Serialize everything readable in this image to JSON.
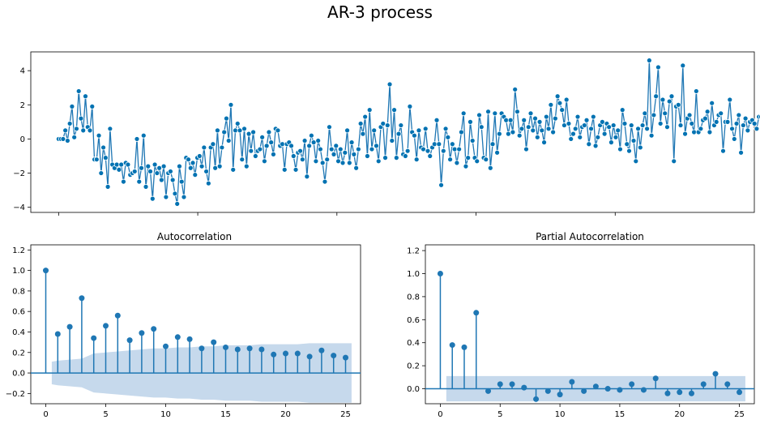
{
  "figure": {
    "title": "AR-3 process"
  },
  "colors": {
    "series": "#1f77b4",
    "marker": "#0072b2",
    "confidence": "#c6d9ec"
  },
  "chart_data": [
    {
      "type": "line",
      "title": "",
      "xlabel": "",
      "ylabel": "",
      "xlim": [
        -1,
        25
      ],
      "ylim": [
        -4.3,
        5.1
      ],
      "yticks": [
        -4,
        -2,
        0,
        2,
        4
      ],
      "xticks_shown": false,
      "x_start": 0,
      "x_step": 0.0804,
      "marker": "o",
      "y": [
        0.0,
        0.0,
        0.0,
        0.5,
        -0.1,
        0.9,
        1.9,
        0.1,
        0.6,
        2.8,
        1.2,
        0.5,
        2.5,
        0.7,
        0.5,
        1.9,
        -1.2,
        -1.2,
        0.2,
        -2.0,
        -0.5,
        -1.1,
        -2.8,
        0.6,
        -1.5,
        -1.7,
        -1.5,
        -1.8,
        -1.5,
        -2.5,
        -1.4,
        -1.5,
        -2.1,
        -2.0,
        -1.9,
        0.0,
        -2.5,
        -1.7,
        0.2,
        -2.8,
        -1.6,
        -1.9,
        -3.5,
        -1.5,
        -2.0,
        -1.7,
        -2.4,
        -1.6,
        -3.4,
        -2.0,
        -1.9,
        -2.4,
        -3.2,
        -3.8,
        -1.6,
        -2.5,
        -3.4,
        -1.1,
        -1.2,
        -1.7,
        -1.4,
        -2.1,
        -1.1,
        -1.0,
        -1.6,
        -0.5,
        -1.9,
        -2.6,
        -0.5,
        -0.3,
        -1.7,
        0.5,
        -1.6,
        -0.5,
        0.4,
        1.2,
        -0.1,
        2.0,
        -1.8,
        0.5,
        0.9,
        0.5,
        -1.2,
        0.6,
        -1.6,
        0.3,
        -0.7,
        0.4,
        -1.0,
        -0.7,
        -0.6,
        0.1,
        -1.3,
        -0.4,
        0.4,
        -0.2,
        -0.9,
        0.6,
        0.5,
        -0.4,
        -0.3,
        -1.8,
        -0.3,
        -0.2,
        -0.4,
        -1.0,
        -1.8,
        -0.8,
        -0.7,
        -1.2,
        -0.1,
        -2.2,
        -0.4,
        0.2,
        -0.2,
        -1.3,
        -0.1,
        -0.6,
        -1.4,
        -2.5,
        -1.2,
        0.7,
        -0.6,
        -0.9,
        -0.4,
        -1.3,
        -0.6,
        -1.4,
        -0.8,
        0.5,
        -1.4,
        -0.2,
        -0.9,
        -1.7,
        -0.6,
        0.9,
        0.3,
        1.3,
        -1.0,
        1.7,
        -0.6,
        0.5,
        -0.4,
        -1.3,
        0.7,
        0.9,
        -1.1,
        0.8,
        3.2,
        -0.1,
        1.7,
        -1.1,
        0.3,
        0.8,
        -0.9,
        -1.0,
        -0.7,
        1.9,
        0.4,
        0.2,
        -1.2,
        0.5,
        -0.5,
        -0.6,
        0.6,
        -0.7,
        -1.0,
        -0.5,
        -0.3,
        1.1,
        -0.3,
        -2.7,
        -0.7,
        0.6,
        0.1,
        -1.2,
        -0.3,
        -0.6,
        -1.4,
        -0.6,
        0.4,
        1.5,
        -1.6,
        -1.1,
        1.0,
        -0.1,
        -1.1,
        -1.3,
        1.4,
        0.7,
        -1.1,
        -1.2,
        1.6,
        -1.7,
        -0.3,
        1.5,
        -0.8,
        0.3,
        1.5,
        1.3,
        1.1,
        0.3,
        1.1,
        0.4,
        2.9,
        1.6,
        0.2,
        0.6,
        1.1,
        -0.6,
        0.7,
        1.5,
        0.5,
        1.2,
        0.1,
        1.0,
        0.5,
        -0.2,
        1.3,
        0.6,
        2.0,
        0.4,
        1.2,
        2.5,
        2.1,
        1.7,
        0.8,
        2.3,
        0.9,
        0.0,
        0.3,
        0.6,
        1.3,
        0.1,
        0.7,
        0.8,
        1.1,
        -0.3,
        0.6,
        1.3,
        -0.4,
        0.1,
        0.8,
        1.0,
        0.3,
        0.9,
        0.7,
        -0.2,
        0.8,
        0.1,
        0.5,
        -0.6,
        1.7,
        0.9,
        -0.3,
        -0.7,
        0.8,
        -0.1,
        -1.3,
        0.6,
        -0.5,
        0.8,
        1.5,
        0.6,
        4.6,
        0.2,
        1.4,
        2.5,
        4.2,
        0.9,
        2.3,
        1.5,
        0.7,
        2.2,
        2.5,
        -1.3,
        1.9,
        2.0,
        0.8,
        4.3,
        0.3,
        1.2,
        1.4,
        0.9,
        0.4,
        2.8,
        0.4,
        0.6,
        1.1,
        1.2,
        1.6,
        0.4,
        2.1,
        0.8,
        1.0,
        1.4,
        1.5,
        -0.7,
        1.0,
        1.0,
        2.3,
        0.6,
        0.0,
        0.9,
        1.4,
        -0.8,
        0.8,
        1.2,
        0.5,
        1.0,
        1.1,
        0.9,
        0.6,
        1.3,
        1.3,
        -0.2,
        -1.8,
        1.0,
        0.5,
        0.2,
        0.3,
        0.6,
        -1.6,
        1.2,
        0.6,
        -0.5,
        1.3,
        -0.7,
        -0.3,
        1.6,
        0.0,
        -1.5,
        0.0,
        -0.4,
        1.2,
        -2.1,
        0.9,
        1.3,
        0.5,
        1.8,
        0.6,
        1.1,
        0.3,
        0.6,
        -0.9,
        1.4,
        1.2,
        1.0,
        -2.5,
        -0.2,
        0.9,
        -0.3,
        -0.5,
        -2.3,
        -0.7,
        0.6,
        -0.1,
        -0.2,
        -2.5,
        0.6,
        -1.7,
        -0.3,
        0.3,
        -0.1,
        -0.5,
        -0.3,
        -2.2,
        -1.7,
        0.5,
        0.6,
        -1.4,
        0.8,
        -1.1,
        -1.0,
        -0.6,
        2.3,
        -1.4,
        0.1,
        -1.0,
        0.3,
        -0.9,
        0.7,
        -0.3,
        -1.1,
        -0.5,
        -1.3,
        -0.2,
        1.1,
        -1.2,
        0.8,
        -0.8,
        -0.5,
        1.1
      ]
    },
    {
      "type": "stem",
      "title": "Autocorrelation",
      "xlabel": "",
      "ylabel": "",
      "xlim": [
        -1.25,
        26.25
      ],
      "ylim": [
        -0.3,
        1.25
      ],
      "xticks": [
        0,
        5,
        10,
        15,
        20,
        25
      ],
      "yticks": [
        -0.2,
        0.0,
        0.2,
        0.4,
        0.6,
        0.8,
        1.0,
        1.2
      ],
      "lags": [
        0,
        1,
        2,
        3,
        4,
        5,
        6,
        7,
        8,
        9,
        10,
        11,
        12,
        13,
        14,
        15,
        16,
        17,
        18,
        19,
        20,
        21,
        22,
        23,
        24,
        25
      ],
      "values": [
        1.0,
        0.38,
        0.45,
        0.73,
        0.34,
        0.46,
        0.56,
        0.32,
        0.39,
        0.43,
        0.26,
        0.35,
        0.33,
        0.24,
        0.3,
        0.25,
        0.23,
        0.24,
        0.23,
        0.18,
        0.19,
        0.19,
        0.16,
        0.22,
        0.17,
        0.15
      ],
      "confidence_band": {
        "lags": [
          0,
          1,
          2,
          3,
          4,
          5,
          6,
          7,
          8,
          9,
          10,
          11,
          12,
          13,
          14,
          15,
          16,
          17,
          18,
          19,
          20,
          21,
          22,
          23,
          24,
          25
        ],
        "upper": [
          0.11,
          0.12,
          0.13,
          0.14,
          0.19,
          0.2,
          0.21,
          0.22,
          0.23,
          0.24,
          0.24,
          0.25,
          0.25,
          0.26,
          0.26,
          0.27,
          0.27,
          0.27,
          0.28,
          0.28,
          0.28,
          0.28,
          0.29,
          0.29,
          0.29,
          0.29
        ]
      },
      "zero_line": true
    },
    {
      "type": "stem",
      "title": "Partial Autocorrelation",
      "xlabel": "",
      "ylabel": "",
      "xlim": [
        -1.25,
        26.25
      ],
      "ylim": [
        -0.13,
        1.25
      ],
      "xticks": [
        0,
        5,
        10,
        15,
        20,
        25
      ],
      "yticks": [
        0.0,
        0.2,
        0.4,
        0.6,
        0.8,
        1.0,
        1.2
      ],
      "lags": [
        0,
        1,
        2,
        3,
        4,
        5,
        6,
        7,
        8,
        9,
        10,
        11,
        12,
        13,
        14,
        15,
        16,
        17,
        18,
        19,
        20,
        21,
        22,
        23,
        24,
        25
      ],
      "values": [
        1.0,
        0.38,
        0.36,
        0.66,
        -0.02,
        0.04,
        0.04,
        0.01,
        -0.09,
        -0.02,
        -0.05,
        0.06,
        -0.02,
        0.02,
        0.0,
        -0.01,
        0.04,
        -0.01,
        0.09,
        -0.04,
        -0.03,
        -0.04,
        0.04,
        0.13,
        0.04,
        -0.03
      ],
      "confidence_band": {
        "upper": 0.11
      },
      "zero_line": true
    }
  ]
}
